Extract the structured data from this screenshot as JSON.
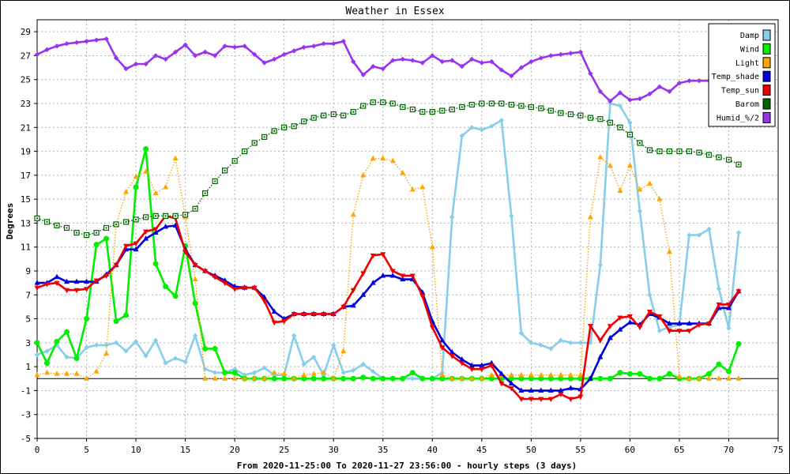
{
  "chart_data": {
    "type": "line",
    "title": "Weather in Essex",
    "ylabel": "Degrees",
    "xlabel": "From 2020-11-25:00 To 2020-11-27 23:56:00 - hourly steps (3 days)",
    "xlim": [
      0,
      75
    ],
    "ylim": [
      -5,
      30
    ],
    "xticks": [
      0,
      5,
      10,
      15,
      20,
      25,
      30,
      35,
      40,
      45,
      50,
      55,
      60,
      65,
      70,
      75
    ],
    "yticks": [
      -5,
      -3,
      -1,
      1,
      3,
      5,
      7,
      9,
      11,
      13,
      15,
      17,
      19,
      21,
      23,
      25,
      27,
      29
    ],
    "grid": true,
    "legend_position": "top-right",
    "series": [
      {
        "name": "Damp",
        "color": "#87CEEB",
        "style": "solid",
        "marker": "diamond",
        "values": [
          2.0,
          2.3,
          2.8,
          1.8,
          1.7,
          2.6,
          2.8,
          2.8,
          3.0,
          2.3,
          3.1,
          1.9,
          3.2,
          1.3,
          1.7,
          1.4,
          3.6,
          0.8,
          0.5,
          0.5,
          0.8,
          0.3,
          0.5,
          0.9,
          0.3,
          0.3,
          3.6,
          1.2,
          1.8,
          0.3,
          2.8,
          0.5,
          0.7,
          1.2,
          0.6,
          0.0,
          0.0,
          0.0,
          0.0,
          0.0,
          0.0,
          0.5,
          13.5,
          20.3,
          21.0,
          20.8,
          21.1,
          21.6,
          13.6,
          3.8,
          3.0,
          2.8,
          2.5,
          3.2,
          3.0,
          3.0,
          3.0,
          9.5,
          23.0,
          22.8,
          21.4,
          14.0,
          7.0,
          4.0,
          4.3,
          4.5,
          12.0,
          12.0,
          12.5,
          7.5,
          4.2,
          12.2
        ]
      },
      {
        "name": "Wind",
        "color": "#00EE00",
        "style": "solid",
        "marker": "circle",
        "values": [
          3.0,
          1.3,
          3.1,
          3.9,
          1.7,
          5.0,
          11.2,
          11.7,
          4.8,
          5.3,
          16.0,
          19.2,
          9.6,
          7.7,
          6.9,
          11.1,
          6.3,
          2.5,
          2.5,
          0.5,
          0.5,
          0.0,
          0.0,
          0.0,
          0.0,
          0.0,
          0.0,
          0.0,
          0.0,
          0.0,
          0.0,
          0.0,
          0.0,
          0.1,
          0.0,
          0.0,
          0.0,
          0.0,
          0.5,
          0.0,
          0.0,
          0.0,
          0.0,
          0.0,
          0.0,
          0.0,
          0.0,
          0.0,
          0.0,
          0.0,
          0.0,
          0.0,
          0.0,
          0.0,
          0.0,
          0.0,
          0.0,
          0.0,
          0.0,
          0.5,
          0.4,
          0.4,
          0.0,
          0.0,
          0.4,
          0.0,
          0.0,
          0.0,
          0.4,
          1.2,
          0.6,
          2.9
        ]
      },
      {
        "name": "Light",
        "color": "#FFA500",
        "style": "dotted",
        "marker": "triangle",
        "values": [
          0.3,
          0.5,
          0.4,
          0.4,
          0.4,
          0.0,
          0.6,
          2.1,
          12.9,
          15.6,
          16.9,
          17.3,
          15.5,
          16.0,
          18.4,
          13.5,
          8.3,
          0.0,
          0.0,
          0.0,
          0.0,
          0.0,
          0.0,
          0.0,
          0.5,
          0.4,
          0.0,
          0.3,
          0.4,
          0.5,
          0.0,
          2.3,
          13.7,
          17.0,
          18.4,
          18.4,
          18.2,
          17.2,
          15.8,
          16.0,
          11.0,
          0.3,
          0.0,
          0.0,
          0.0,
          0.0,
          0.3,
          0.3,
          0.3,
          0.3,
          0.3,
          0.3,
          0.3,
          0.3,
          0.3,
          0.3,
          13.5,
          18.5,
          17.8,
          15.7,
          17.8,
          15.8,
          16.3,
          15.0,
          10.6,
          0.2,
          0.0,
          0.0,
          0.0,
          0.0,
          0.0,
          0.0
        ]
      },
      {
        "name": "Temp_shade",
        "color": "#0000DD",
        "style": "solid",
        "marker": "triangle",
        "values": [
          8.0,
          8.0,
          8.5,
          8.1,
          8.1,
          8.1,
          8.1,
          8.7,
          9.5,
          10.8,
          10.8,
          11.7,
          12.2,
          12.7,
          12.8,
          10.8,
          9.5,
          9.0,
          8.6,
          8.2,
          7.7,
          7.6,
          7.6,
          6.8,
          5.6,
          5.0,
          5.4,
          5.4,
          5.4,
          5.4,
          5.4,
          6.0,
          6.1,
          7.0,
          8.0,
          8.6,
          8.6,
          8.3,
          8.3,
          7.2,
          4.8,
          3.2,
          2.2,
          1.6,
          1.1,
          1.1,
          1.3,
          0.4,
          -0.4,
          -1.0,
          -1.0,
          -1.0,
          -1.0,
          -1.0,
          -0.8,
          -0.9,
          0.0,
          1.8,
          3.4,
          4.1,
          4.7,
          4.5,
          5.4,
          5.1,
          4.6,
          4.6,
          4.6,
          4.6,
          4.6,
          5.9,
          5.9,
          7.3
        ]
      },
      {
        "name": "Temp_sun",
        "color": "#EE0000",
        "style": "solid",
        "marker": "triangle-down",
        "values": [
          7.6,
          7.9,
          8.0,
          7.4,
          7.4,
          7.5,
          8.2,
          8.6,
          9.5,
          11.1,
          11.3,
          12.3,
          12.5,
          13.6,
          13.4,
          10.6,
          9.5,
          9.0,
          8.5,
          8.0,
          7.5,
          7.6,
          7.6,
          6.5,
          4.7,
          4.8,
          5.4,
          5.4,
          5.4,
          5.4,
          5.4,
          6.0,
          7.4,
          8.8,
          10.3,
          10.4,
          9.0,
          8.6,
          8.6,
          6.9,
          4.3,
          2.6,
          1.9,
          1.3,
          0.8,
          0.8,
          1.1,
          -0.4,
          -0.8,
          -1.7,
          -1.7,
          -1.7,
          -1.7,
          -1.3,
          -1.7,
          -1.5,
          4.4,
          3.2,
          4.4,
          5.1,
          5.2,
          4.3,
          5.6,
          5.2,
          4.0,
          4.0,
          4.0,
          4.5,
          4.6,
          6.2,
          6.2,
          7.3
        ]
      },
      {
        "name": "Barom",
        "color": "#006400",
        "style": "dotted",
        "marker": "square",
        "values": [
          13.4,
          13.1,
          12.8,
          12.6,
          12.2,
          12.0,
          12.2,
          12.6,
          12.9,
          13.1,
          13.3,
          13.5,
          13.6,
          13.6,
          13.6,
          13.7,
          14.2,
          15.5,
          16.5,
          17.4,
          18.2,
          19.0,
          19.7,
          20.2,
          20.7,
          21.0,
          21.1,
          21.5,
          21.8,
          22.0,
          22.1,
          22.0,
          22.3,
          22.8,
          23.1,
          23.1,
          23.0,
          22.7,
          22.5,
          22.3,
          22.3,
          22.4,
          22.5,
          22.7,
          22.9,
          23.0,
          23.0,
          23.0,
          22.9,
          22.8,
          22.7,
          22.6,
          22.4,
          22.2,
          22.1,
          22.0,
          21.8,
          21.7,
          21.4,
          21.0,
          20.4,
          19.7,
          19.1,
          19.0,
          19.0,
          19.0,
          19.0,
          18.9,
          18.7,
          18.5,
          18.3,
          17.9
        ]
      },
      {
        "name": "Humid_%/2",
        "color": "#9933EE",
        "style": "solid",
        "marker": "diamond",
        "values": [
          27.1,
          27.5,
          27.8,
          28.0,
          28.1,
          28.2,
          28.3,
          28.4,
          26.8,
          25.9,
          26.3,
          26.3,
          27.0,
          26.7,
          27.3,
          27.9,
          27.0,
          27.3,
          27.0,
          27.8,
          27.7,
          27.8,
          27.1,
          26.4,
          26.7,
          27.1,
          27.4,
          27.7,
          27.8,
          28.0,
          28.0,
          28.2,
          26.5,
          25.4,
          26.1,
          25.9,
          26.6,
          26.7,
          26.6,
          26.4,
          27.0,
          26.5,
          26.6,
          26.1,
          26.7,
          26.4,
          26.5,
          25.8,
          25.3,
          26.0,
          26.5,
          26.8,
          27.0,
          27.1,
          27.2,
          27.3,
          25.5,
          24.0,
          23.2,
          23.9,
          23.3,
          23.4,
          23.8,
          24.4,
          24.0,
          24.7,
          24.9,
          24.9,
          24.9,
          24.9,
          24.9,
          24.9
        ]
      }
    ]
  }
}
